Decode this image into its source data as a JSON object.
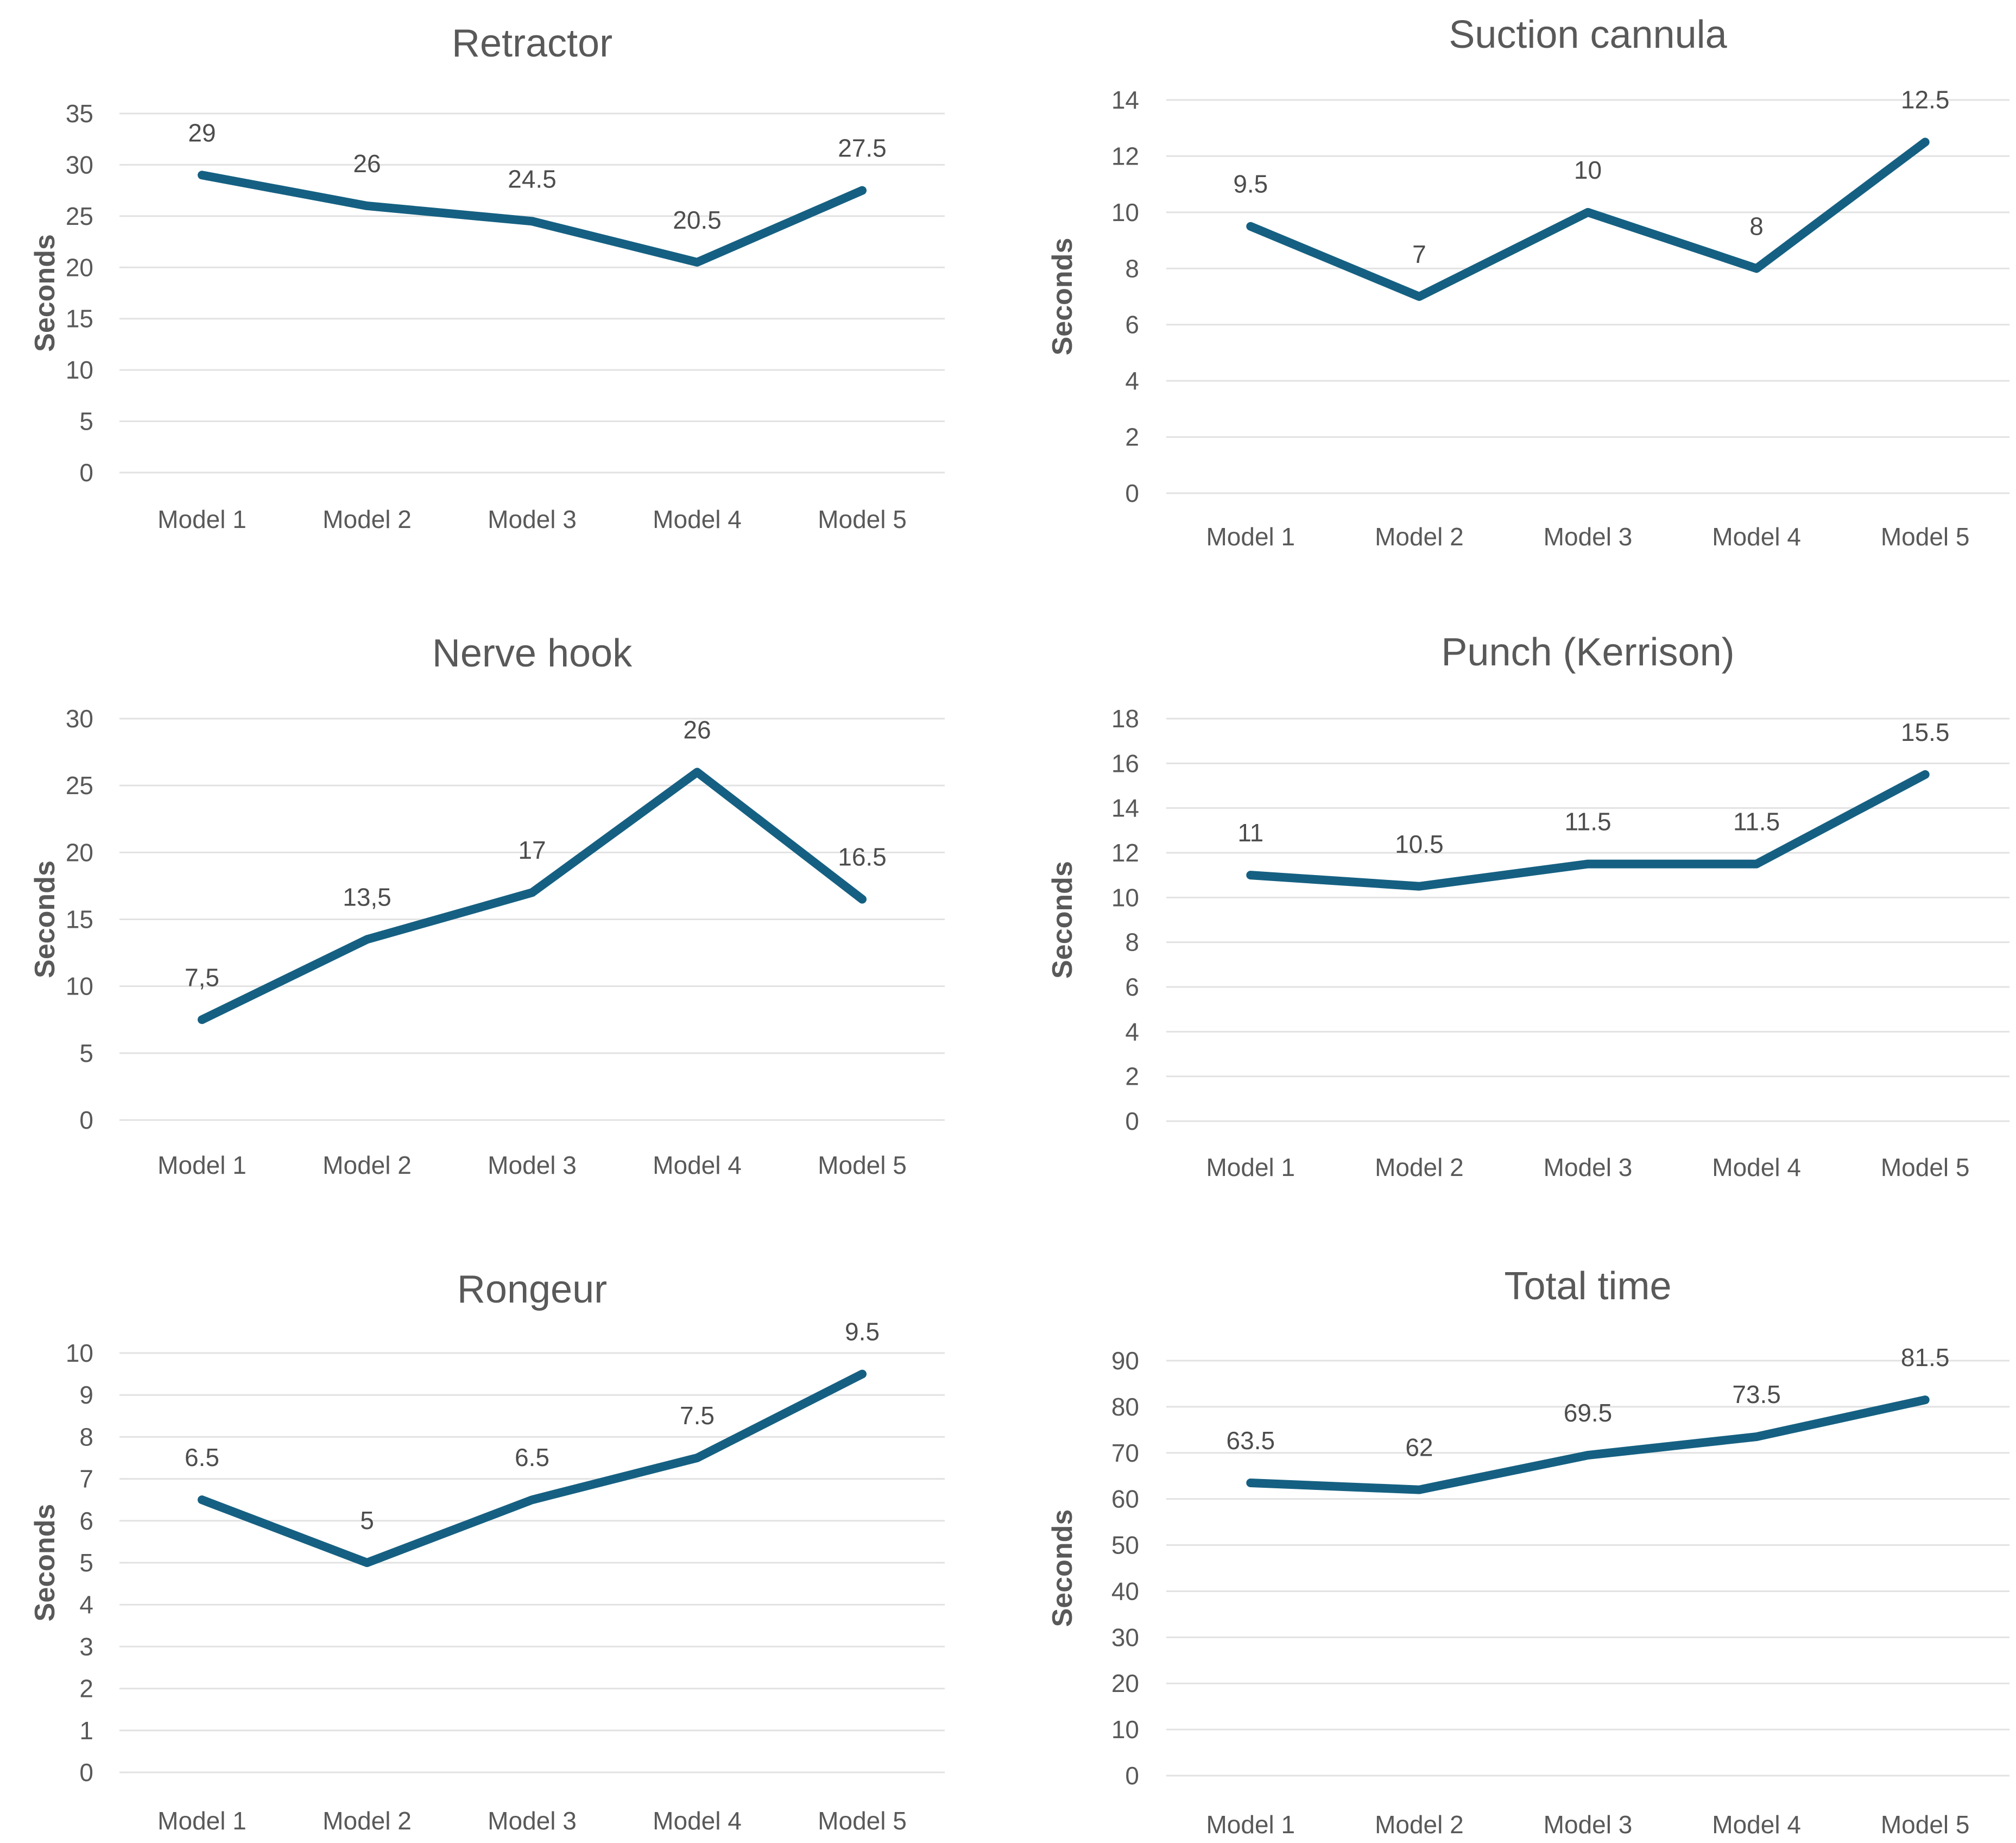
{
  "page": {
    "background": "#ffffff",
    "description_units": "Seconds"
  },
  "colors": {
    "line": "#156082",
    "grid": "#e2e2e2",
    "axis_text": "#595959",
    "title_text": "#595959",
    "data_label_text": "#4d4d4d"
  },
  "chart_data": [
    {
      "type": "line",
      "title": "Retractor",
      "ylabel": "Seconds",
      "xlabel": "",
      "categories": [
        "Model 1",
        "Model 2",
        "Model 3",
        "Model 4",
        "Model 5"
      ],
      "values": [
        29,
        26,
        24.5,
        20.5,
        27.5
      ],
      "value_labels": [
        "29",
        "26",
        "24.5",
        "20.5",
        "27.5"
      ],
      "ylim": [
        0,
        35
      ],
      "ystep": 5,
      "grid": true,
      "legend": "none"
    },
    {
      "type": "line",
      "title": "Suction cannula",
      "ylabel": "Seconds",
      "xlabel": "",
      "categories": [
        "Model 1",
        "Model 2",
        "Model 3",
        "Model 4",
        "Model 5"
      ],
      "values": [
        9.5,
        7,
        10,
        8,
        12.5
      ],
      "value_labels": [
        "9.5",
        "7",
        "10",
        "8",
        "12.5"
      ],
      "ylim": [
        0,
        14
      ],
      "ystep": 2,
      "grid": true,
      "legend": "none"
    },
    {
      "type": "line",
      "title": "Nerve hook",
      "ylabel": "Seconds",
      "xlabel": "",
      "categories": [
        "Model 1",
        "Model 2",
        "Model 3",
        "Model 4",
        "Model 5"
      ],
      "values": [
        7.5,
        13.5,
        17,
        26,
        16.5
      ],
      "value_labels": [
        "7,5",
        "13,5",
        "17",
        "26",
        "16.5"
      ],
      "ylim": [
        0,
        30
      ],
      "ystep": 5,
      "grid": true,
      "legend": "none"
    },
    {
      "type": "line",
      "title": "Punch (Kerrison)",
      "ylabel": "Seconds",
      "xlabel": "",
      "categories": [
        "Model 1",
        "Model 2",
        "Model 3",
        "Model 4",
        "Model 5"
      ],
      "values": [
        11,
        10.5,
        11.5,
        11.5,
        15.5
      ],
      "value_labels": [
        "11",
        "10.5",
        "11.5",
        "11.5",
        "15.5"
      ],
      "ylim": [
        0,
        18
      ],
      "ystep": 2,
      "grid": true,
      "legend": "none"
    },
    {
      "type": "line",
      "title": "Rongeur",
      "ylabel": "Seconds",
      "xlabel": "",
      "categories": [
        "Model 1",
        "Model 2",
        "Model 3",
        "Model 4",
        "Model 5"
      ],
      "values": [
        6.5,
        5,
        6.5,
        7.5,
        9.5
      ],
      "value_labels": [
        "6.5",
        "5",
        "6.5",
        "7.5",
        "9.5"
      ],
      "ylim": [
        0,
        10
      ],
      "ystep": 1,
      "grid": true,
      "legend": "none"
    },
    {
      "type": "line",
      "title": "Total time",
      "ylabel": "Seconds",
      "xlabel": "",
      "categories": [
        "Model 1",
        "Model 2",
        "Model 3",
        "Model 4",
        "Model 5"
      ],
      "values": [
        63.5,
        62,
        69.5,
        73.5,
        81.5
      ],
      "value_labels": [
        "63.5",
        "62",
        "69.5",
        "73.5",
        "81.5"
      ],
      "ylim": [
        0,
        90
      ],
      "ystep": 10,
      "grid": true,
      "legend": "none"
    }
  ]
}
